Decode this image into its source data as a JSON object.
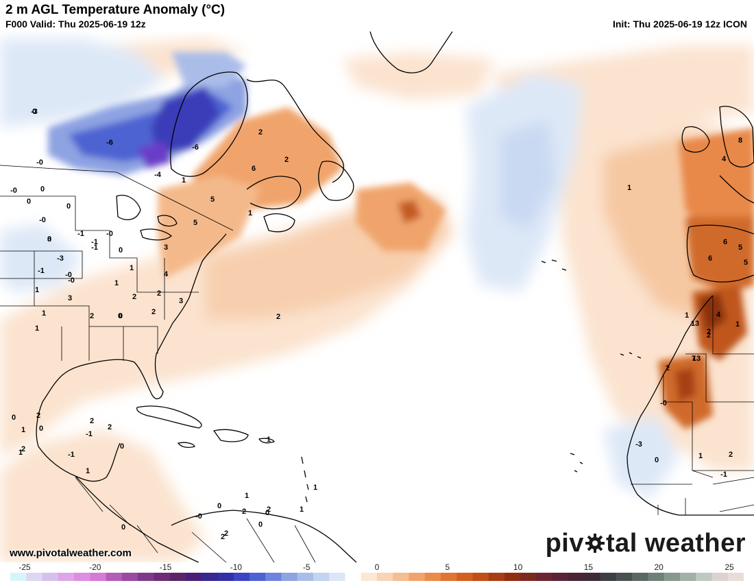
{
  "header": {
    "title": "2 m AGL Temperature Anomaly (°C)",
    "valid": "F000 Valid: Thu 2025-06-19 12z",
    "init": "Init: Thu 2025-06-19 12z ICON"
  },
  "footer": {
    "site_url": "www.pivotalweather.com",
    "brand_left": "piv",
    "brand_right": "tal weather"
  },
  "colorbar": {
    "ticks": [
      "-25",
      "-20",
      "-15",
      "-10",
      "-5",
      "0",
      "5",
      "10",
      "15",
      "20",
      "25"
    ],
    "colors": [
      "#d8f4fb",
      "#dcd8f2",
      "#d7c0ec",
      "#dca6e8",
      "#de8ee0",
      "#d77ad6",
      "#b45db6",
      "#9a4aa0",
      "#7e3a8a",
      "#6d2d76",
      "#5c2568",
      "#4a1f78",
      "#3b2790",
      "#3030a8",
      "#3a44c4",
      "#4d63d2",
      "#6d84dc",
      "#8ea3e2",
      "#aabde9",
      "#c3d4f0",
      "#dbe6f7",
      "#ffffff",
      "#fbe7d6",
      "#f8d3b5",
      "#f4bd92",
      "#f0a46c",
      "#ea8b4a",
      "#e07432",
      "#d45f20",
      "#c24e18",
      "#a83c14",
      "#8f2f12",
      "#7a2a20",
      "#6a2630",
      "#5a2438",
      "#4a2535",
      "#3e2a3a",
      "#3d3d44",
      "#4a5052",
      "#5b6763",
      "#6f8077",
      "#87988e",
      "#a3b0a8",
      "#c0c8c2",
      "#ddd2cf",
      "#eadcd8"
    ]
  },
  "map": {
    "contour_labels": [
      "-3",
      "-6",
      "-6",
      "-4",
      "-0",
      "0",
      "0",
      "0",
      "-0",
      "-0",
      "0",
      "-1",
      "-1",
      "-3",
      "3",
      "-1",
      "-0",
      "-1",
      "-0",
      "0",
      "1",
      "1",
      "-0",
      "1",
      "3",
      "1",
      "1",
      "2",
      "0",
      "3",
      "4",
      "2",
      "2",
      "3",
      "5",
      "6",
      "5",
      "2",
      "2",
      "1",
      "1",
      "2",
      "2",
      "0",
      "0",
      "1",
      "2",
      "2",
      "1",
      "-1",
      "0",
      "2",
      "2",
      "1",
      "-1",
      "0",
      "1",
      "13",
      "6",
      "5",
      "6",
      "8",
      "5",
      "4",
      "4",
      "2",
      "1",
      "13",
      "7",
      "2",
      "-0",
      "-3",
      "1",
      "2",
      "1",
      "-1",
      "0",
      "2",
      "0",
      "1",
      "1",
      "1",
      "0",
      "0",
      "2",
      "-0",
      "2",
      "1",
      "0",
      "2",
      "2",
      "0"
    ],
    "chart_data_type": "map",
    "colors": {
      "land_outline": "#000000",
      "ocean_neutral": "#ffffff",
      "warm_light": "#fbe3cf",
      "warm_medium": "#f4b98a",
      "warm_strong": "#e0843e",
      "hot": "#b04515",
      "cool_light": "#dde8f7",
      "cool_medium": "#a9bfe8",
      "cold": "#4a5bd0",
      "very_cold": "#5a3fc0"
    }
  }
}
